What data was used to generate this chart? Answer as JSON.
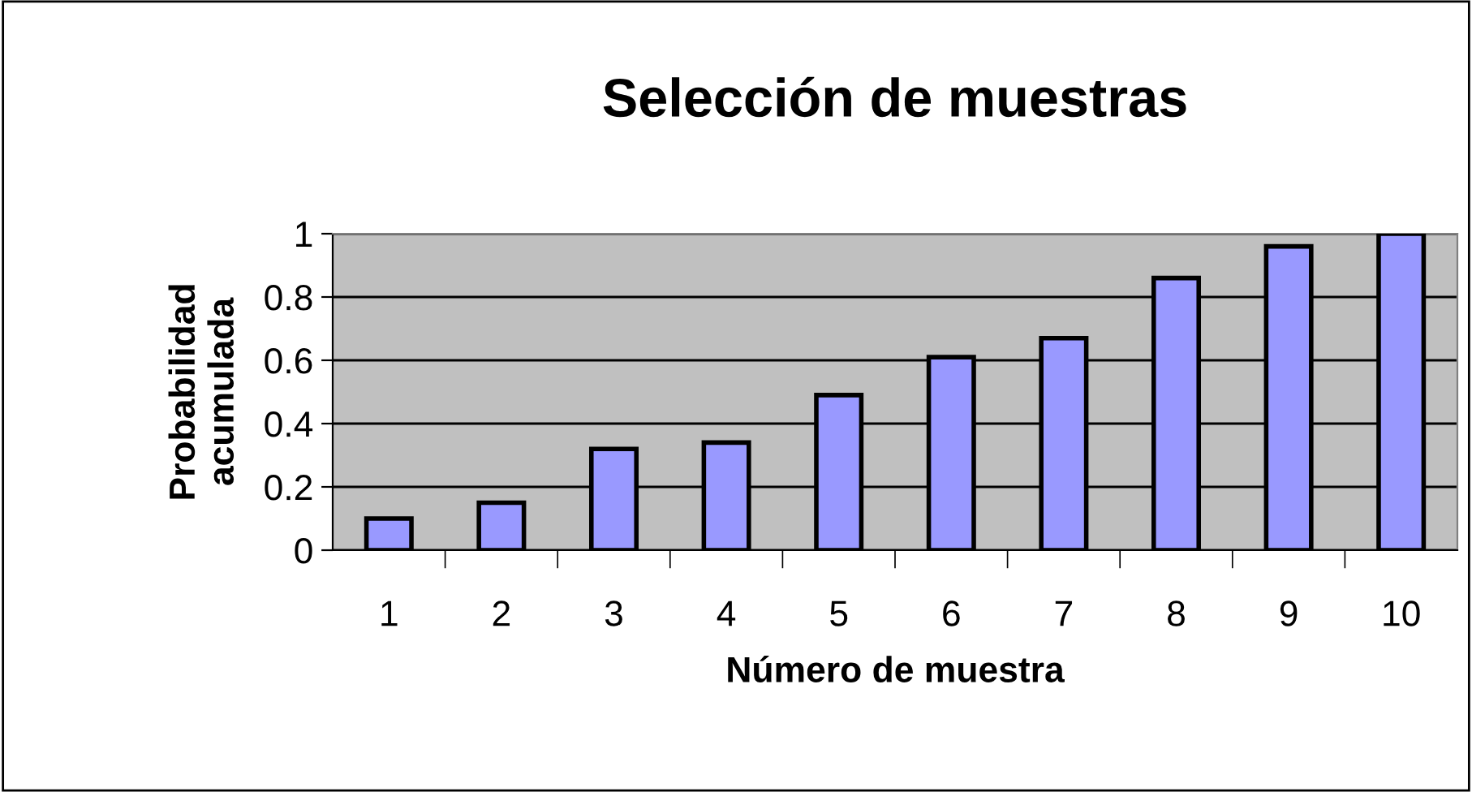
{
  "chart_data": {
    "type": "bar",
    "title": "Selección de muestras",
    "xlabel": "Número de muestra",
    "ylabel": "Probabilidad\nacumulada",
    "categories": [
      "1",
      "2",
      "3",
      "4",
      "5",
      "6",
      "7",
      "8",
      "9",
      "10"
    ],
    "values": [
      0.1,
      0.15,
      0.32,
      0.34,
      0.49,
      0.61,
      0.67,
      0.86,
      0.96,
      1.0
    ],
    "color": "#9999ff",
    "ylim": [
      0,
      1
    ],
    "yticks": [
      0,
      0.2,
      0.4,
      0.6,
      0.8,
      1
    ],
    "grid": "y",
    "legend": false
  }
}
